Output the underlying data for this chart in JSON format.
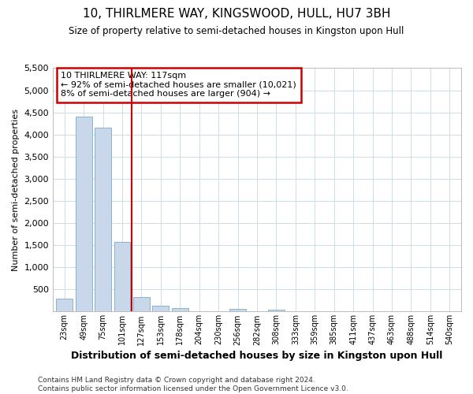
{
  "title": "10, THIRLMERE WAY, KINGSWOOD, HULL, HU7 3BH",
  "subtitle": "Size of property relative to semi-detached houses in Kingston upon Hull",
  "xlabel": "Distribution of semi-detached houses by size in Kingston upon Hull",
  "ylabel": "Number of semi-detached properties",
  "footnote1": "Contains HM Land Registry data © Crown copyright and database right 2024.",
  "footnote2": "Contains public sector information licensed under the Open Government Licence v3.0.",
  "annotation_line1": "10 THIRLMERE WAY: 117sqm",
  "annotation_line2": "← 92% of semi-detached houses are smaller (10,021)",
  "annotation_line3": "8% of semi-detached houses are larger (904) →",
  "bar_color": "#c8d8ea",
  "bar_edge_color": "#7aaac8",
  "marker_color": "#cc0000",
  "annotation_box_edge": "#cc0000",
  "grid_color": "#ccdde8",
  "ylim": [
    0,
    5500
  ],
  "yticks": [
    0,
    500,
    1000,
    1500,
    2000,
    2500,
    3000,
    3500,
    4000,
    4500,
    5000,
    5500
  ],
  "categories": [
    "23sqm",
    "49sqm",
    "75sqm",
    "101sqm",
    "127sqm",
    "153sqm",
    "178sqm",
    "204sqm",
    "230sqm",
    "256sqm",
    "282sqm",
    "308sqm",
    "333sqm",
    "359sqm",
    "385sqm",
    "411sqm",
    "437sqm",
    "463sqm",
    "488sqm",
    "514sqm",
    "540sqm"
  ],
  "values": [
    290,
    4400,
    4150,
    1570,
    320,
    130,
    70,
    0,
    0,
    65,
    0,
    35,
    0,
    0,
    0,
    0,
    0,
    0,
    0,
    0,
    0
  ],
  "marker_index": 4
}
